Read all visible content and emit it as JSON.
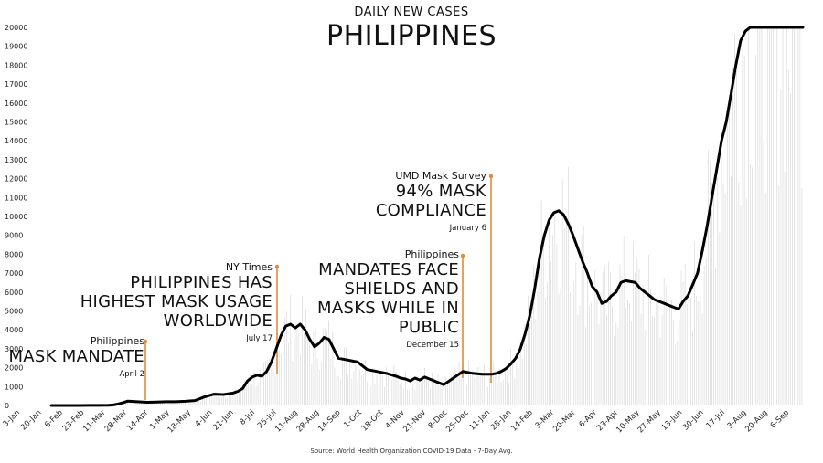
{
  "chart_data": {
    "type": "line",
    "subtitle": "DAILY NEW CASES",
    "title": "PHILIPPINES",
    "source": "Source: World Health Organization COVID-19 Data - 7-Day Avg.",
    "ylim": [
      0,
      20000
    ],
    "y_ticks": [
      "0",
      "1000",
      "2000",
      "3000",
      "4000",
      "5000",
      "6000",
      "7000",
      "8000",
      "9000",
      "10000",
      "11000",
      "12000",
      "13000",
      "14000",
      "15000",
      "16000",
      "17000",
      "18000",
      "19000",
      "20000"
    ],
    "x_ticks": [
      "3-Jan",
      "20-Jan",
      "6-Feb",
      "23-Feb",
      "11-Mar",
      "28-Mar",
      "14-Apr",
      "1-May",
      "18-May",
      "4-Jun",
      "21-Jun",
      "8-Jul",
      "25-Jul",
      "11-Aug",
      "28-Aug",
      "14-Sep",
      "1-Oct",
      "18-Oct",
      "4-Nov",
      "21-Nov",
      "8-Dec",
      "25-Dec",
      "11-Jan",
      "28-Jan",
      "14-Feb",
      "3-Mar",
      "20-Mar",
      "6-Apr",
      "23-Apr",
      "10-May",
      "27-May",
      "13-Jun",
      "30-Jun",
      "17-Jul",
      "3-Aug",
      "20-Aug",
      "6-Sep"
    ],
    "series": [
      {
        "x": [
          0,
          10,
          20,
          30,
          40,
          50,
          60,
          65,
          70,
          75,
          80,
          90,
          100,
          110,
          120,
          130,
          140,
          150,
          160,
          170,
          180,
          190,
          195,
          200,
          205,
          210,
          215,
          220,
          225,
          230,
          235,
          240,
          245,
          250,
          255,
          260,
          265,
          270,
          275,
          280,
          285,
          290,
          300,
          310,
          320,
          330,
          340,
          350,
          360,
          365,
          370,
          375,
          380,
          385,
          390,
          400,
          410,
          420,
          430,
          440,
          450,
          460,
          465,
          470,
          475,
          480,
          485,
          490,
          495,
          500,
          505,
          510,
          515,
          520,
          525,
          530,
          535,
          540,
          545,
          550,
          555,
          560,
          565,
          570,
          575,
          580,
          585,
          590,
          595,
          600,
          605,
          610,
          615,
          620,
          625,
          630,
          635,
          640,
          645,
          650,
          655,
          660,
          665,
          670,
          675,
          680,
          685,
          690,
          695,
          700,
          705,
          710,
          715,
          720,
          725,
          730,
          735,
          740,
          745,
          750,
          755,
          760,
          765,
          770,
          775,
          780,
          785
        ],
        "values": [
          0,
          0,
          1,
          2,
          3,
          5,
          10,
          30,
          80,
          150,
          230,
          200,
          170,
          180,
          200,
          200,
          220,
          260,
          450,
          600,
          580,
          660,
          750,
          900,
          1300,
          1500,
          1600,
          1550,
          1800,
          2300,
          3000,
          3700,
          4200,
          4300,
          4100,
          4300,
          4000,
          3500,
          3100,
          3300,
          3600,
          3500,
          2500,
          2400,
          2300,
          1900,
          1800,
          1700,
          1550,
          1450,
          1400,
          1300,
          1450,
          1350,
          1500,
          1300,
          1100,
          1450,
          1800,
          1700,
          1650,
          1650,
          1700,
          1800,
          1950,
          2200,
          2500,
          3000,
          3800,
          4800,
          6200,
          7800,
          9000,
          9800,
          10200,
          10300,
          10100,
          9600,
          9000,
          8300,
          7600,
          7000,
          6300,
          6000,
          5400,
          5500,
          5800,
          6000,
          6500,
          6600,
          6550,
          6500,
          6200,
          6000,
          5800,
          5600,
          5500,
          5400,
          5300,
          5200,
          5100,
          5500,
          5800,
          6400,
          7000,
          8200,
          9500,
          11000,
          12500,
          14000,
          15000,
          16500,
          18000,
          19300,
          19800,
          20100,
          20200,
          20300,
          20300,
          20400,
          20450,
          20500,
          20500,
          20500,
          20500,
          20500,
          20500
        ]
      }
    ],
    "annotations": [
      {
        "source": "Philippines",
        "headline": [
          "MASK MANDATE"
        ],
        "date": "April 2"
      },
      {
        "source": "NY Times",
        "headline": [
          "PHILIPPINES HAS",
          "HIGHEST MASK USAGE",
          "WORLDWIDE"
        ],
        "date": "July 17"
      },
      {
        "source": "Philippines",
        "headline": [
          "MANDATES FACE",
          "SHIELDS AND",
          "MASKS WHILE IN",
          "PUBLIC"
        ],
        "date": "December 15"
      },
      {
        "source": "UMD Mask Survey",
        "headline": [
          "94% MASK",
          "COMPLIANCE"
        ],
        "date": "January 6"
      }
    ],
    "colors": {
      "line": "#000000",
      "annotation": "#e08a3c",
      "bars": "#d9d9d9",
      "grid": "#eeeeee"
    },
    "grid": false,
    "legend": "none"
  }
}
